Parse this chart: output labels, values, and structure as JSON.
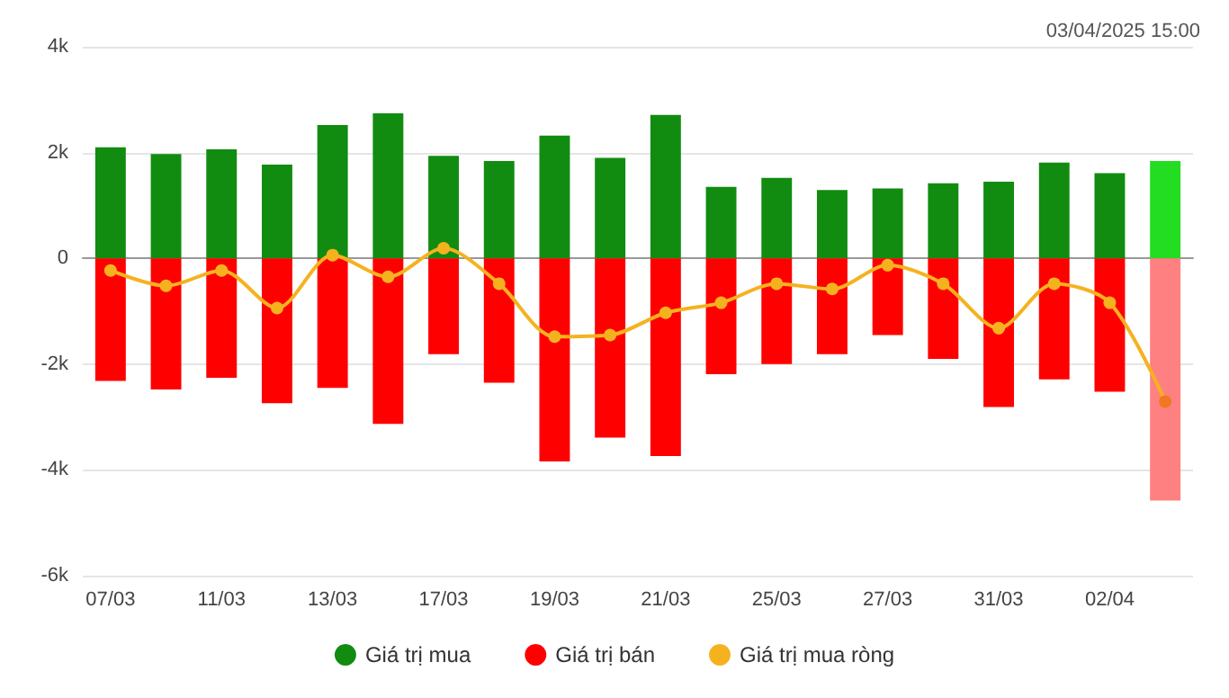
{
  "chart_data": {
    "type": "bar",
    "stacked": true,
    "annotations": [
      "03/04/2025 15:00"
    ],
    "categories": [
      "07/03",
      null,
      "11/03",
      null,
      "13/03",
      null,
      "17/03",
      null,
      "19/03",
      null,
      "21/03",
      null,
      "25/03",
      null,
      "27/03",
      null,
      "31/03",
      null,
      "02/04",
      null
    ],
    "series": [
      {
        "name": "Giá trị mua",
        "color": "#118c11",
        "colors": [
          "#118c11",
          "#118c11",
          "#118c11",
          "#118c11",
          "#118c11",
          "#118c11",
          "#118c11",
          "#118c11",
          "#118c11",
          "#118c11",
          "#118c11",
          "#118c11",
          "#118c11",
          "#118c11",
          "#118c11",
          "#118c11",
          "#118c11",
          "#118c11",
          "#118c11",
          "#22dd22"
        ],
        "values": [
          2100,
          1970,
          2060,
          1770,
          2520,
          2740,
          1940,
          1840,
          2320,
          1900,
          2710,
          1350,
          1520,
          1290,
          1320,
          1420,
          1450,
          1810,
          1610,
          1840
        ]
      },
      {
        "name": "Giá trị bán",
        "color": "#ff0000",
        "colors": [
          "#ff0000",
          "#ff0000",
          "#ff0000",
          "#ff0000",
          "#ff0000",
          "#ff0000",
          "#ff0000",
          "#ff0000",
          "#ff0000",
          "#ff0000",
          "#ff0000",
          "#ff0000",
          "#ff0000",
          "#ff0000",
          "#ff0000",
          "#ff0000",
          "#ff0000",
          "#ff0000",
          "#ff0000",
          "#ff8080"
        ],
        "values": [
          -2320,
          -2480,
          -2260,
          -2740,
          -2450,
          -3130,
          -1810,
          -2350,
          -3840,
          -3390,
          -3740,
          -2190,
          -2000,
          -1810,
          -1450,
          -1900,
          -2810,
          -2290,
          -2520,
          -4580
        ]
      },
      {
        "name": "Giá trị mua ròng",
        "type": "line",
        "color": "#f5b21f",
        "colors": [
          "#f5b21f",
          "#f5b21f",
          "#f5b21f",
          "#f5b21f",
          "#f5b21f",
          "#f5b21f",
          "#f5b21f",
          "#f5b21f",
          "#f5b21f",
          "#f5b21f",
          "#f5b21f",
          "#f5b21f",
          "#f5b21f",
          "#f5b21f",
          "#f5b21f",
          "#f5b21f",
          "#f5b21f",
          "#f5b21f",
          "#f5b21f",
          "#f07820"
        ],
        "values": [
          -230,
          -520,
          -230,
          -940,
          60,
          -350,
          190,
          -480,
          -1480,
          -1450,
          -1030,
          -840,
          -480,
          -580,
          -130,
          -480,
          -1320,
          -480,
          -840,
          -2710
        ]
      }
    ],
    "ylim": [
      -6000,
      4000
    ],
    "yticks": [
      {
        "value": -6000,
        "label": "-6k"
      },
      {
        "value": -4000,
        "label": "-4k"
      },
      {
        "value": -2000,
        "label": "-2k"
      },
      {
        "value": 0,
        "label": "0"
      },
      {
        "value": 2000,
        "label": "2k"
      },
      {
        "value": 4000,
        "label": "4k"
      }
    ],
    "grid": "y",
    "legend": "bottom",
    "marker": "circle",
    "line_style": "solid"
  }
}
